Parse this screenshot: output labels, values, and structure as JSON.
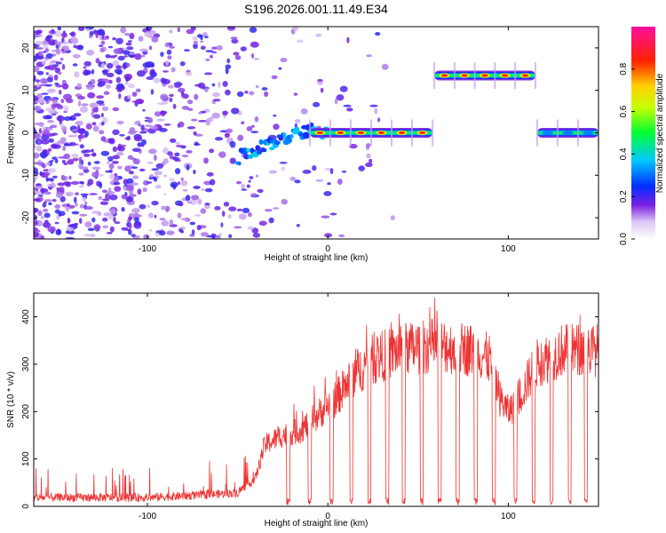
{
  "title": "S196.2026.001.11.49.E34",
  "chart_data": [
    {
      "type": "heatmap",
      "name": "spectrogram",
      "xlabel": "Height of straight line (km)",
      "ylabel": "Frequency (Hz)",
      "xlim": [
        -163,
        150
      ],
      "ylim": [
        -25,
        25
      ],
      "x_ticks": [
        -100,
        0,
        100
      ],
      "y_ticks": [
        20,
        10,
        0,
        -10,
        -20
      ],
      "colorbar": {
        "label": "Normalized spectral amplitude",
        "range": [
          0,
          1
        ],
        "ticks": [
          "0.0",
          "0.2",
          "0.4",
          "0.6",
          "0.8"
        ],
        "tick_values": [
          0.0,
          0.2,
          0.4,
          0.6,
          0.8
        ]
      },
      "tone_segments": [
        {
          "x_start": -10,
          "x_end": 58,
          "freq": 0,
          "peak_amplitude": 0.95
        },
        {
          "x_start": 59,
          "x_end": 115,
          "freq": 13.5,
          "peak_amplitude": 0.95
        },
        {
          "x_start": 116,
          "x_end": 150,
          "freq": 0,
          "peak_amplitude": 0.45
        }
      ],
      "drift_track": [
        {
          "x": -50,
          "freq": -6
        },
        {
          "x": -40,
          "freq": -4
        },
        {
          "x": -30,
          "freq": -2
        },
        {
          "x": -20,
          "freq": -1
        },
        {
          "x": -10,
          "freq": 0.5
        },
        {
          "x": 0,
          "freq": 0
        }
      ]
    },
    {
      "type": "line",
      "name": "snr",
      "xlabel": "Height of straight line (km)",
      "ylabel": "SNR (10 * v/v)",
      "xlim": [
        -163,
        150
      ],
      "ylim": [
        0,
        450
      ],
      "x_ticks": [
        -100,
        0,
        100
      ],
      "y_ticks": [
        0,
        100,
        200,
        300,
        400
      ],
      "color": "#ee3333",
      "envelope": [
        {
          "x": -163,
          "y": 15
        },
        {
          "x": -100,
          "y": 15
        },
        {
          "x": -70,
          "y": 20
        },
        {
          "x": -50,
          "y": 25
        },
        {
          "x": -40,
          "y": 60
        },
        {
          "x": -35,
          "y": 130
        },
        {
          "x": -25,
          "y": 150
        },
        {
          "x": -15,
          "y": 160
        },
        {
          "x": -5,
          "y": 195
        },
        {
          "x": 5,
          "y": 230
        },
        {
          "x": 15,
          "y": 280
        },
        {
          "x": 25,
          "y": 310
        },
        {
          "x": 40,
          "y": 330
        },
        {
          "x": 60,
          "y": 340
        },
        {
          "x": 80,
          "y": 330
        },
        {
          "x": 90,
          "y": 310
        },
        {
          "x": 95,
          "y": 230
        },
        {
          "x": 100,
          "y": 200
        },
        {
          "x": 105,
          "y": 220
        },
        {
          "x": 115,
          "y": 300
        },
        {
          "x": 130,
          "y": 330
        },
        {
          "x": 150,
          "y": 330
        }
      ],
      "dropouts_x": [
        -22,
        -10,
        2,
        13,
        23,
        33,
        42,
        52,
        62,
        72,
        82,
        92,
        104,
        114,
        124,
        134,
        143
      ]
    }
  ]
}
